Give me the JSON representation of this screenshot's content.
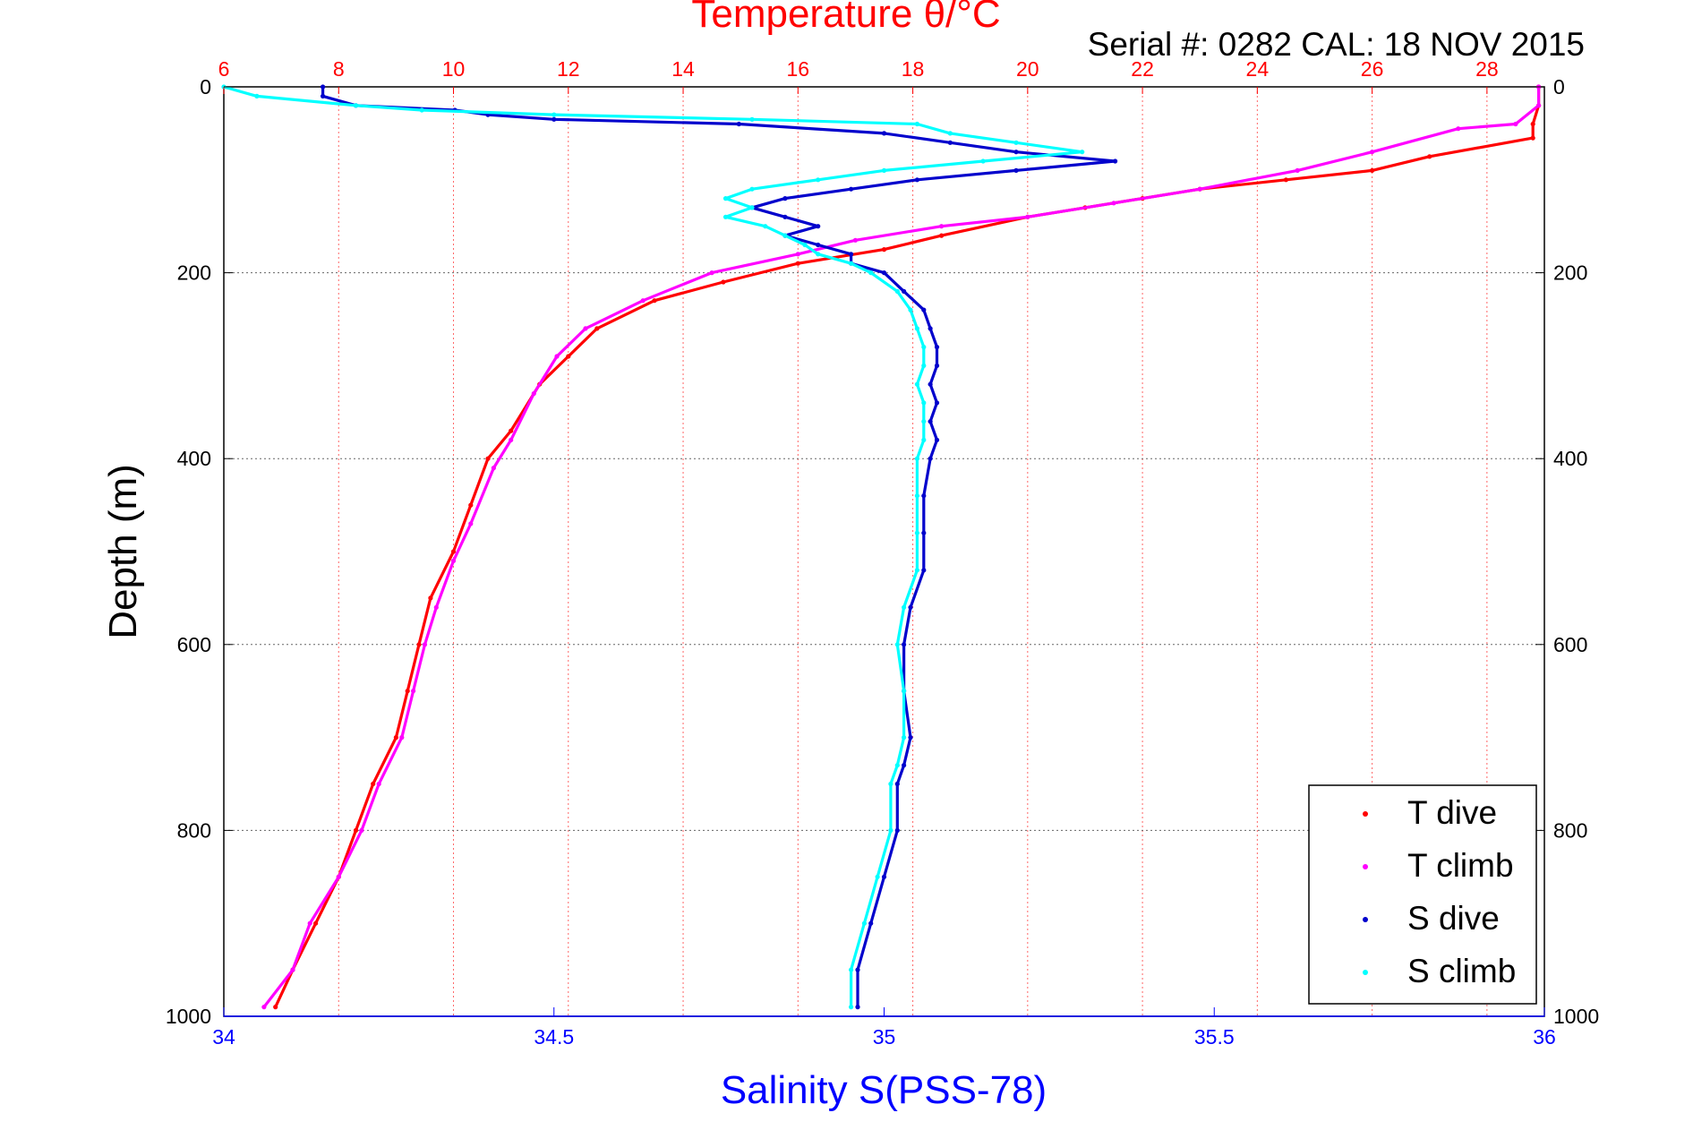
{
  "chart_data": {
    "type": "scatter",
    "title": "Temperature θ/°C",
    "subtitle": "Serial #: 0282  CAL: 18 NOV 2015",
    "ylabel": "Depth (m)",
    "xlabel": "Salinity S(PSS-78)",
    "ylim": [
      0,
      1000
    ],
    "y_reversed": true,
    "x_temperature_lim": [
      6,
      29
    ],
    "x_salinity_lim": [
      34,
      36
    ],
    "temperature_ticks": [
      "6",
      "8",
      "10",
      "12",
      "14",
      "16",
      "18",
      "20",
      "22",
      "24",
      "26",
      "28"
    ],
    "temperature_tick_values": [
      6,
      8,
      10,
      12,
      14,
      16,
      18,
      20,
      22,
      24,
      26,
      28
    ],
    "salinity_ticks": [
      "34",
      "34.5",
      "35",
      "35.5",
      "36"
    ],
    "salinity_tick_values": [
      34,
      34.5,
      35,
      35.5,
      36
    ],
    "depth_ticks": [
      "0",
      "200",
      "400",
      "600",
      "800",
      "1000"
    ],
    "depth_tick_values": [
      0,
      200,
      400,
      600,
      800,
      1000
    ],
    "grid": true,
    "legend_position": "bottom-right",
    "colors": {
      "temperature_axis": "#ff0000",
      "salinity_axis": "#0000ff",
      "t_dive": "#ff0000",
      "t_climb": "#ff00ff",
      "s_dive": "#0000cc",
      "s_climb": "#00ffff",
      "grid_x": "#ff6666",
      "grid_y": "#666666"
    },
    "series": [
      {
        "name": "T dive",
        "axis": "temperature",
        "points": [
          [
            28.9,
            0
          ],
          [
            28.9,
            20
          ],
          [
            28.8,
            40
          ],
          [
            28.8,
            55
          ],
          [
            27.0,
            75
          ],
          [
            26.0,
            90
          ],
          [
            24.5,
            100
          ],
          [
            23.0,
            110
          ],
          [
            22.0,
            120
          ],
          [
            21.0,
            130
          ],
          [
            20.0,
            140
          ],
          [
            18.5,
            160
          ],
          [
            17.5,
            175
          ],
          [
            16.0,
            190
          ],
          [
            14.7,
            210
          ],
          [
            13.5,
            230
          ],
          [
            12.5,
            260
          ],
          [
            12.0,
            290
          ],
          [
            11.5,
            320
          ],
          [
            11.0,
            370
          ],
          [
            10.6,
            400
          ],
          [
            10.3,
            450
          ],
          [
            10.0,
            500
          ],
          [
            9.6,
            550
          ],
          [
            9.4,
            600
          ],
          [
            9.2,
            650
          ],
          [
            9.0,
            700
          ],
          [
            8.6,
            750
          ],
          [
            8.3,
            800
          ],
          [
            8.0,
            850
          ],
          [
            7.6,
            900
          ],
          [
            7.2,
            950
          ],
          [
            6.9,
            990
          ]
        ]
      },
      {
        "name": "T climb",
        "axis": "temperature",
        "points": [
          [
            28.9,
            0
          ],
          [
            28.9,
            20
          ],
          [
            28.5,
            40
          ],
          [
            27.5,
            45
          ],
          [
            26.0,
            70
          ],
          [
            24.7,
            90
          ],
          [
            23.0,
            110
          ],
          [
            21.5,
            125
          ],
          [
            20.0,
            140
          ],
          [
            18.5,
            150
          ],
          [
            17.0,
            165
          ],
          [
            16.0,
            180
          ],
          [
            14.5,
            200
          ],
          [
            13.3,
            230
          ],
          [
            12.3,
            260
          ],
          [
            11.8,
            290
          ],
          [
            11.4,
            330
          ],
          [
            11.0,
            380
          ],
          [
            10.7,
            410
          ],
          [
            10.3,
            470
          ],
          [
            10.0,
            510
          ],
          [
            9.7,
            560
          ],
          [
            9.5,
            600
          ],
          [
            9.3,
            650
          ],
          [
            9.1,
            700
          ],
          [
            8.7,
            750
          ],
          [
            8.4,
            800
          ],
          [
            8.0,
            850
          ],
          [
            7.5,
            900
          ],
          [
            7.2,
            950
          ],
          [
            6.7,
            990
          ]
        ]
      },
      {
        "name": "S dive",
        "axis": "salinity",
        "points": [
          [
            34.15,
            0
          ],
          [
            34.15,
            10
          ],
          [
            34.2,
            20
          ],
          [
            34.35,
            25
          ],
          [
            34.4,
            30
          ],
          [
            34.5,
            35
          ],
          [
            34.78,
            40
          ],
          [
            35.0,
            50
          ],
          [
            35.1,
            60
          ],
          [
            35.2,
            70
          ],
          [
            35.35,
            80
          ],
          [
            35.2,
            90
          ],
          [
            35.05,
            100
          ],
          [
            34.95,
            110
          ],
          [
            34.85,
            120
          ],
          [
            34.8,
            130
          ],
          [
            34.85,
            140
          ],
          [
            34.9,
            150
          ],
          [
            34.85,
            160
          ],
          [
            34.9,
            170
          ],
          [
            34.95,
            180
          ],
          [
            34.95,
            190
          ],
          [
            35.0,
            200
          ],
          [
            35.03,
            220
          ],
          [
            35.06,
            240
          ],
          [
            35.07,
            260
          ],
          [
            35.08,
            280
          ],
          [
            35.08,
            300
          ],
          [
            35.07,
            320
          ],
          [
            35.08,
            340
          ],
          [
            35.07,
            360
          ],
          [
            35.08,
            380
          ],
          [
            35.07,
            400
          ],
          [
            35.06,
            440
          ],
          [
            35.06,
            480
          ],
          [
            35.06,
            520
          ],
          [
            35.04,
            560
          ],
          [
            35.03,
            600
          ],
          [
            35.03,
            650
          ],
          [
            35.04,
            700
          ],
          [
            35.03,
            730
          ],
          [
            35.02,
            750
          ],
          [
            35.02,
            800
          ],
          [
            35.0,
            850
          ],
          [
            34.98,
            900
          ],
          [
            34.96,
            950
          ],
          [
            34.96,
            990
          ]
        ]
      },
      {
        "name": "S climb",
        "axis": "salinity",
        "points": [
          [
            34.0,
            0
          ],
          [
            34.05,
            10
          ],
          [
            34.2,
            20
          ],
          [
            34.3,
            25
          ],
          [
            34.5,
            30
          ],
          [
            34.8,
            35
          ],
          [
            35.05,
            40
          ],
          [
            35.1,
            50
          ],
          [
            35.2,
            60
          ],
          [
            35.3,
            70
          ],
          [
            35.15,
            80
          ],
          [
            35.0,
            90
          ],
          [
            34.9,
            100
          ],
          [
            34.8,
            110
          ],
          [
            34.76,
            120
          ],
          [
            34.8,
            130
          ],
          [
            34.76,
            140
          ],
          [
            34.82,
            150
          ],
          [
            34.85,
            160
          ],
          [
            34.88,
            170
          ],
          [
            34.9,
            180
          ],
          [
            34.95,
            190
          ],
          [
            34.98,
            200
          ],
          [
            35.02,
            220
          ],
          [
            35.04,
            240
          ],
          [
            35.05,
            260
          ],
          [
            35.06,
            280
          ],
          [
            35.06,
            300
          ],
          [
            35.05,
            320
          ],
          [
            35.06,
            340
          ],
          [
            35.06,
            360
          ],
          [
            35.06,
            380
          ],
          [
            35.05,
            400
          ],
          [
            35.05,
            440
          ],
          [
            35.05,
            480
          ],
          [
            35.05,
            520
          ],
          [
            35.03,
            560
          ],
          [
            35.02,
            600
          ],
          [
            35.03,
            650
          ],
          [
            35.03,
            700
          ],
          [
            35.02,
            730
          ],
          [
            35.01,
            750
          ],
          [
            35.01,
            800
          ],
          [
            34.99,
            850
          ],
          [
            34.97,
            900
          ],
          [
            34.95,
            950
          ],
          [
            34.95,
            990
          ]
        ]
      }
    ]
  }
}
